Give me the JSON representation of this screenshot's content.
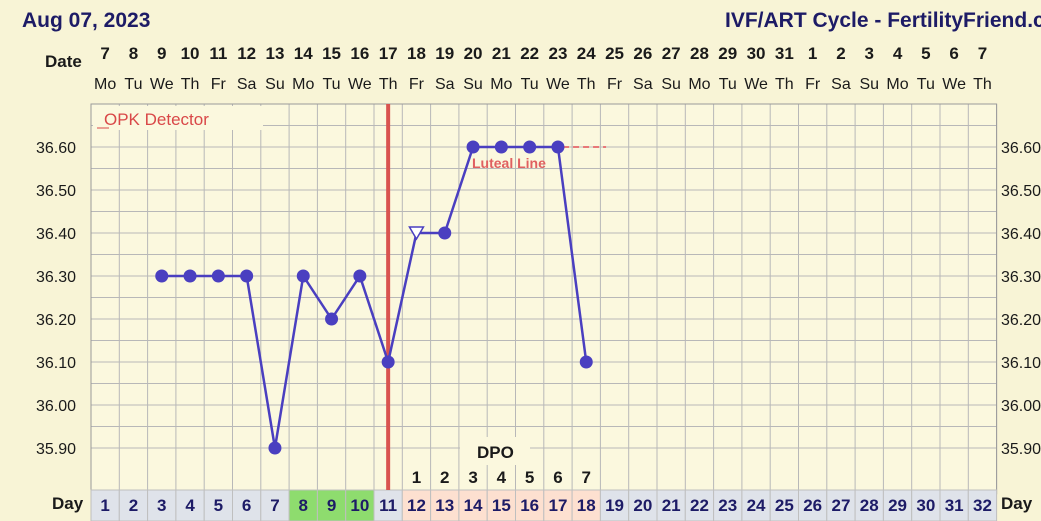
{
  "header": {
    "date": "Aug 07, 2023",
    "title": "IVF/ART Cycle - FertilityFriend.co"
  },
  "labels": {
    "date_row": "Date",
    "day_row": "Day",
    "day_row_right": "Day",
    "dpo": "DPO",
    "opk": "OPK Detector",
    "luteal": "Luteal Line"
  },
  "colors": {
    "background": "#f8f4d6",
    "grid": "#b8b8b8",
    "line": "#4a3fc0",
    "marker": "#4a3fc0",
    "ovulation_line": "#d9534f",
    "luteal_text": "#e06060",
    "green_cells": "#8edc6e",
    "pink_cells": "#fde0d0",
    "day_cells": "#dfe3ea"
  },
  "chart_data": {
    "type": "line",
    "title": "IVF/ART Cycle - FertilityFriend.co",
    "xlabel": "Day",
    "ylabel": "",
    "ylim": [
      35.85,
      36.7
    ],
    "yticks": [
      "36.60",
      "36.50",
      "36.40",
      "36.30",
      "36.20",
      "36.10",
      "36.00",
      "35.90"
    ],
    "days": [
      1,
      2,
      3,
      4,
      5,
      6,
      7,
      8,
      9,
      10,
      11,
      12,
      13,
      14,
      15,
      16,
      17,
      18,
      19,
      20,
      21,
      22,
      23,
      24,
      25,
      26,
      27,
      28,
      29,
      30,
      31,
      32
    ],
    "dates": [
      "7",
      "8",
      "9",
      "10",
      "11",
      "12",
      "13",
      "14",
      "15",
      "16",
      "17",
      "18",
      "19",
      "20",
      "21",
      "22",
      "23",
      "24",
      "25",
      "26",
      "27",
      "28",
      "29",
      "30",
      "31",
      "1",
      "2",
      "3",
      "4",
      "5",
      "6",
      "7"
    ],
    "weekdays": [
      "Mo",
      "Tu",
      "We",
      "Th",
      "Fr",
      "Sa",
      "Su",
      "Mo",
      "Tu",
      "We",
      "Th",
      "Fr",
      "Sa",
      "Su",
      "Mo",
      "Tu",
      "We",
      "Th",
      "Fr",
      "Sa",
      "Su",
      "Mo",
      "Tu",
      "We",
      "Th",
      "Fr",
      "Sa",
      "Su",
      "Mo",
      "Tu",
      "We",
      "Th"
    ],
    "series": [
      {
        "x": [
          3,
          4,
          5,
          6,
          7,
          8,
          9,
          10,
          11,
          12,
          13,
          14,
          15,
          16,
          17,
          18
        ],
        "y": [
          36.3,
          36.3,
          36.3,
          36.3,
          35.9,
          36.3,
          36.2,
          36.3,
          36.1,
          36.4,
          36.4,
          36.6,
          36.6,
          36.6,
          36.6,
          36.1
        ],
        "markers": [
          "dot",
          "dot",
          "dot",
          "dot",
          "dot",
          "dot",
          "dot",
          "dot",
          "dot",
          "open-triangle",
          "dot",
          "dot",
          "dot",
          "dot",
          "dot",
          "dot"
        ]
      }
    ],
    "ovulation_day": 11,
    "coverline": 36.6,
    "dpo": [
      "1",
      "2",
      "3",
      "4",
      "5",
      "6",
      "7"
    ],
    "dpo_days": [
      12,
      13,
      14,
      15,
      16,
      17,
      18
    ],
    "green_days": [
      8,
      9,
      10
    ],
    "pink_days": [
      12,
      13,
      14,
      15,
      16,
      17,
      18
    ]
  }
}
